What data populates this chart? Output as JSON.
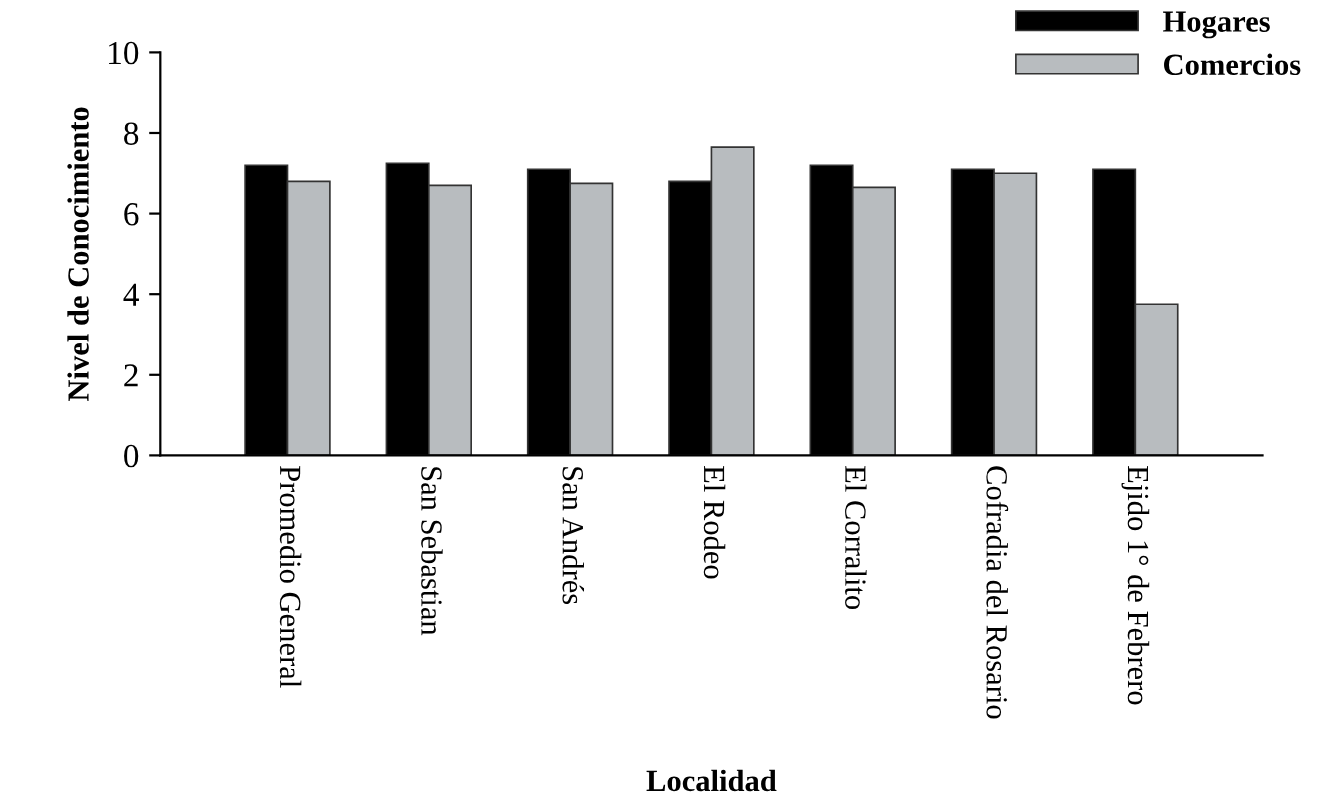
{
  "chart_data": {
    "type": "bar",
    "xlabel": "Localidad",
    "ylabel": "Nivel de Conocimiento",
    "categories": [
      "Promedio General",
      "San Sebastian",
      "San Andrés",
      "El Rodeo",
      "El Corralito",
      "Cofradia del Rosario",
      "Ejido 1° de Febrero"
    ],
    "series": [
      {
        "name": "Hogares",
        "color": "#000000",
        "values": [
          7.2,
          7.25,
          7.1,
          6.8,
          7.2,
          7.1,
          7.1
        ]
      },
      {
        "name": "Comercios",
        "color": "#b8bcbf",
        "values": [
          6.8,
          6.7,
          6.75,
          7.65,
          6.65,
          7.0,
          3.75
        ]
      }
    ],
    "ylim": [
      0,
      10
    ],
    "yticks": [
      0,
      2,
      4,
      6,
      8,
      10
    ],
    "grid": false,
    "legend": "top right"
  }
}
